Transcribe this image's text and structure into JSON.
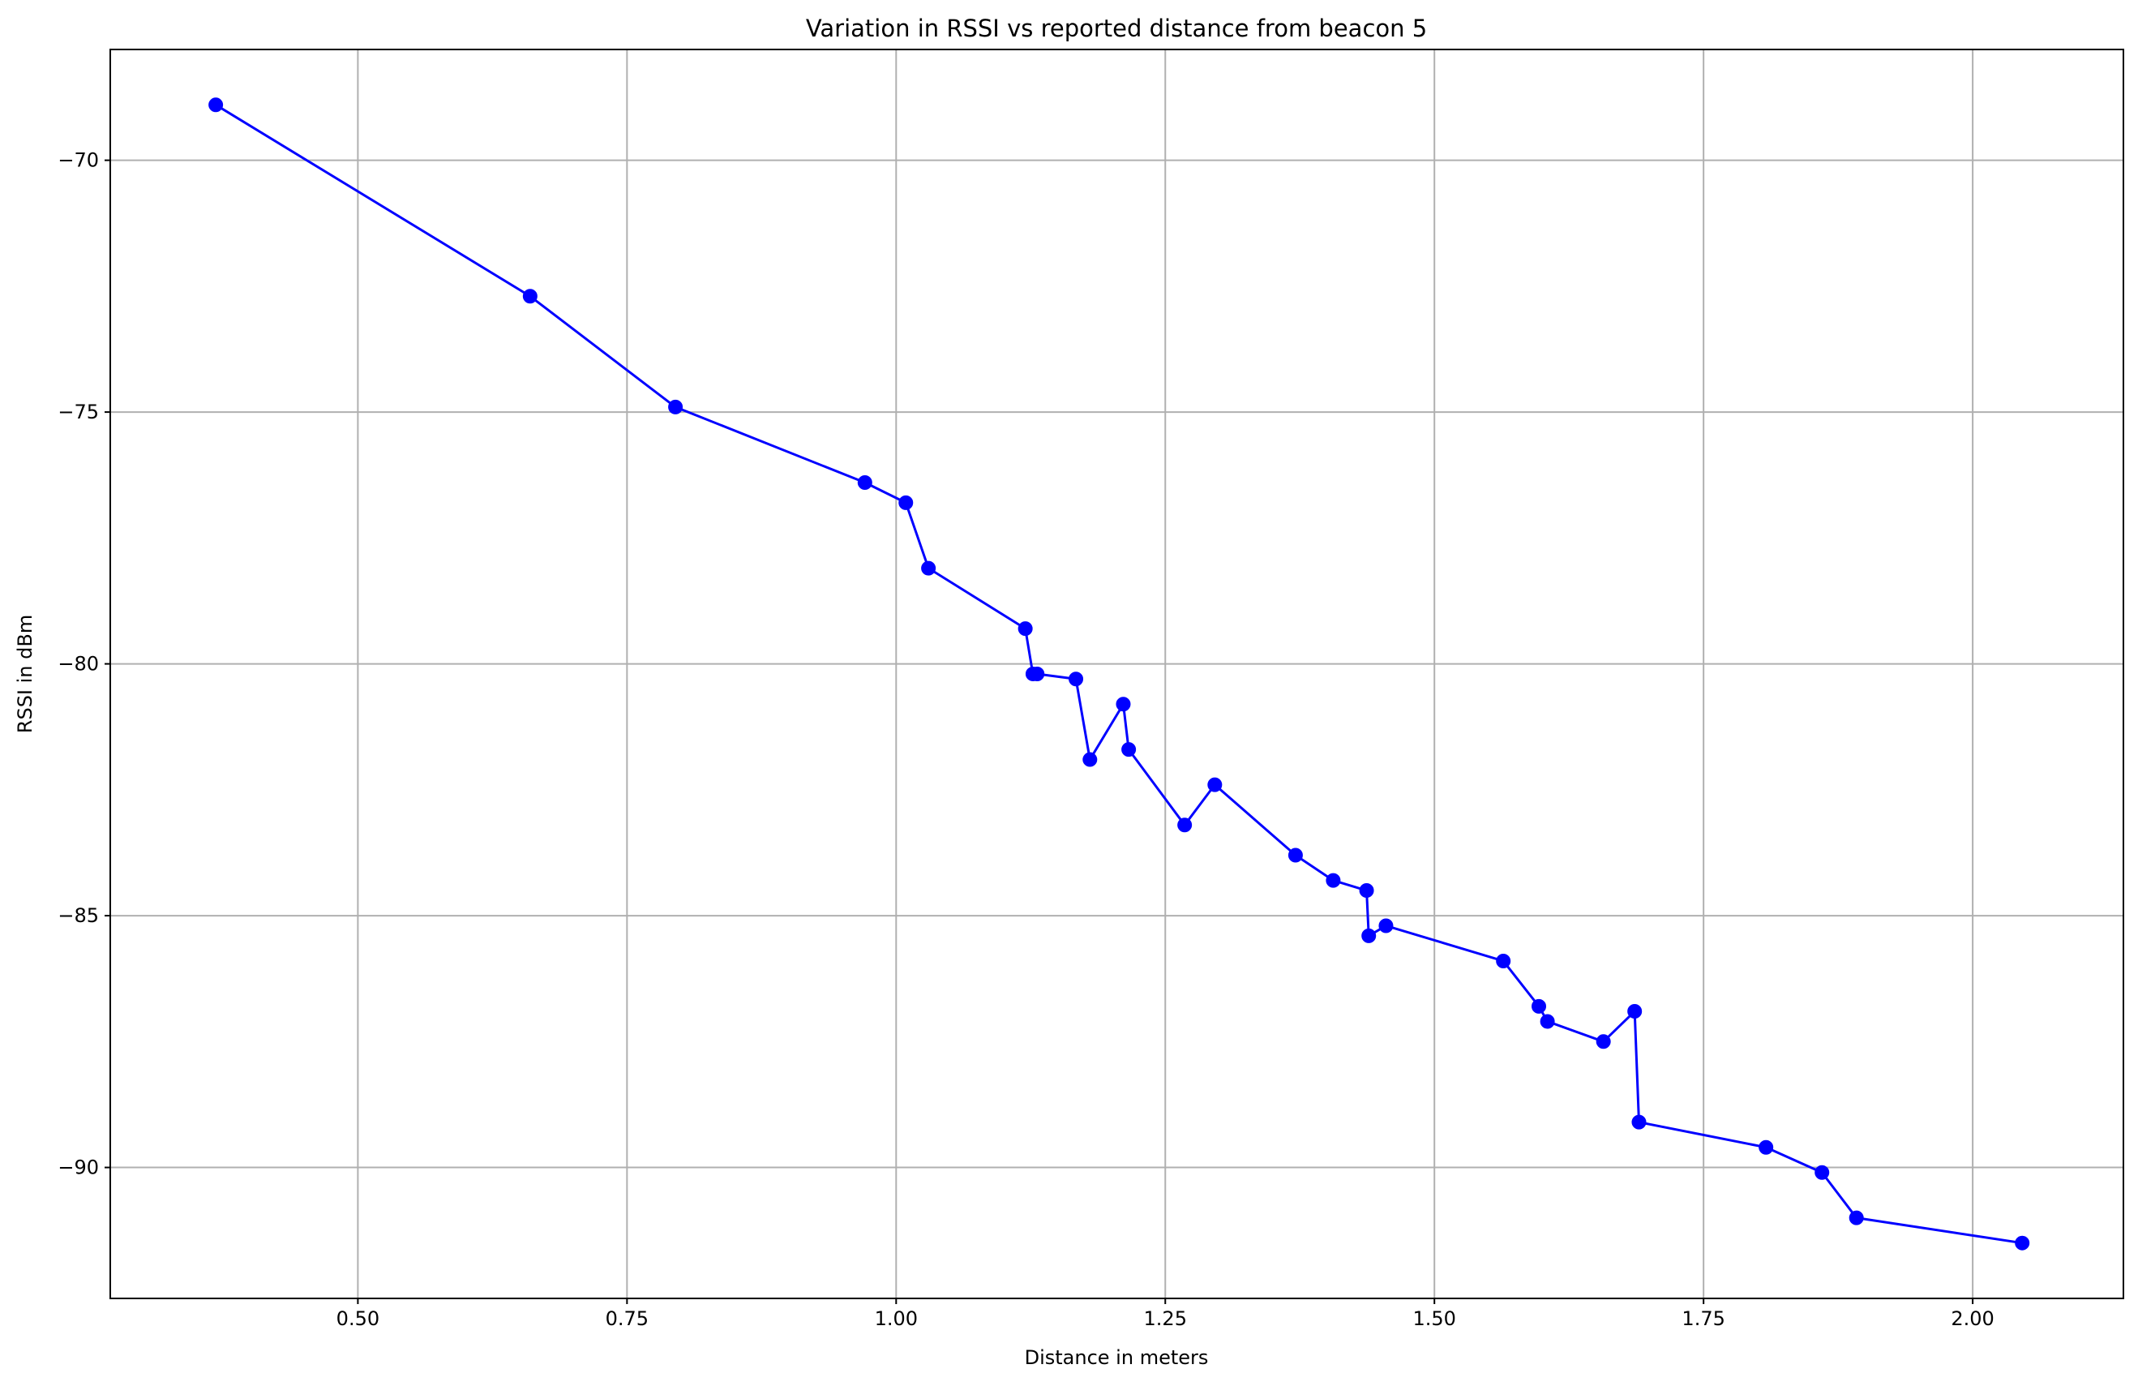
{
  "chart_data": {
    "type": "line",
    "title": "Variation in RSSI vs reported distance from beacon 5",
    "xlabel": "Distance in meters",
    "ylabel": "RSSI in dBm",
    "xlim": [
      0.27,
      2.14
    ],
    "ylim": [
      -92.6,
      -67.8
    ],
    "xticks": [
      0.5,
      0.75,
      1.0,
      1.25,
      1.5,
      1.75,
      2.0
    ],
    "xtick_labels": [
      "0.50",
      "0.75",
      "1.00",
      "1.25",
      "1.50",
      "1.75",
      "2.00"
    ],
    "yticks": [
      -70,
      -75,
      -80,
      -85,
      -90
    ],
    "ytick_labels": [
      "−70",
      "−75",
      "−80",
      "−85",
      "−90"
    ],
    "grid": true,
    "marker": "circle",
    "colors": {
      "line": "#0000ff",
      "grid": "#b0b0b0",
      "axes": "#000000"
    },
    "series": [
      {
        "x": [
          0.368,
          0.66,
          0.795,
          0.971,
          1.009,
          1.03,
          1.12,
          1.127,
          1.131,
          1.167,
          1.18,
          1.211,
          1.216,
          1.268,
          1.296,
          1.371,
          1.406,
          1.437,
          1.439,
          1.455,
          1.564,
          1.597,
          1.605,
          1.657,
          1.686,
          1.69,
          1.808,
          1.86,
          1.892,
          2.046
        ],
        "y": [
          -68.9,
          -72.7,
          -74.9,
          -76.4,
          -76.8,
          -78.1,
          -79.3,
          -80.2,
          -80.2,
          -80.3,
          -81.9,
          -80.8,
          -81.7,
          -83.2,
          -82.4,
          -83.8,
          -84.3,
          -84.5,
          -85.4,
          -85.2,
          -85.9,
          -86.8,
          -87.1,
          -87.5,
          -86.9,
          -89.1,
          -89.6,
          -90.1,
          -91.0,
          -91.5
        ]
      }
    ]
  }
}
